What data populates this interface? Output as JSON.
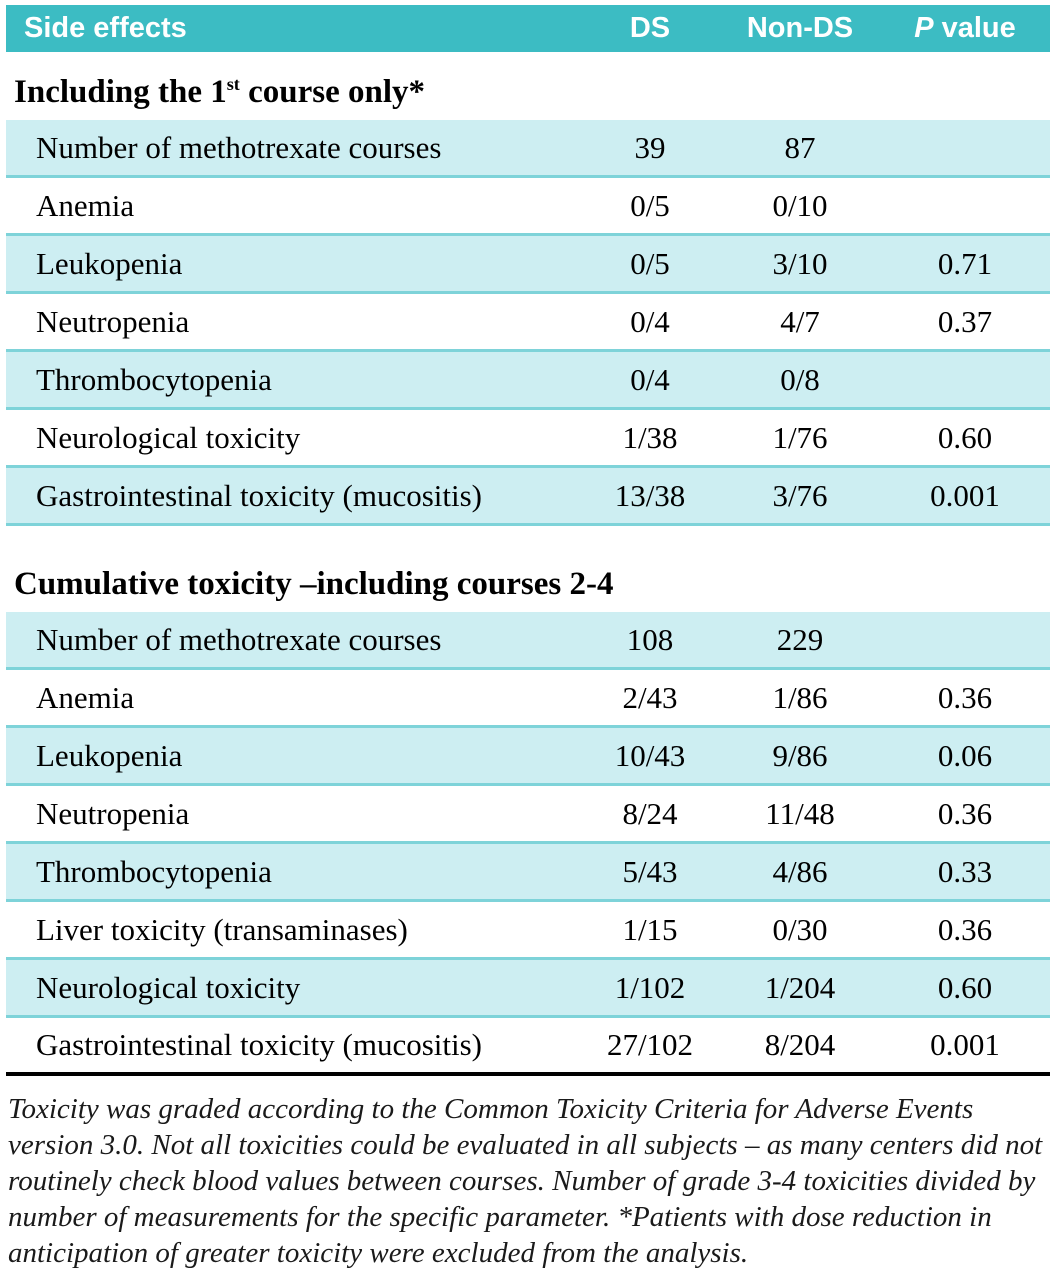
{
  "header": {
    "side_effects": "Side effects",
    "ds": "DS",
    "non_ds": "Non-DS",
    "p_italic": "P",
    "p_rest": " value"
  },
  "sections": [
    {
      "title_prefix": "Including the 1",
      "title_sup": "st",
      "title_suffix": " course only*",
      "rows": [
        {
          "label": "Number of methotrexate courses",
          "ds": "39",
          "non_ds": "87",
          "p": ""
        },
        {
          "label": "Anemia",
          "ds": "0/5",
          "non_ds": "0/10",
          "p": ""
        },
        {
          "label": "Leukopenia",
          "ds": "0/5",
          "non_ds": "3/10",
          "p": "0.71"
        },
        {
          "label": "Neutropenia",
          "ds": "0/4",
          "non_ds": "4/7",
          "p": "0.37"
        },
        {
          "label": "Thrombocytopenia",
          "ds": "0/4",
          "non_ds": "0/8",
          "p": ""
        },
        {
          "label": "Neurological toxicity",
          "ds": "1/38",
          "non_ds": "1/76",
          "p": "0.60"
        },
        {
          "label": "Gastrointestinal toxicity (mucositis)",
          "ds": "13/38",
          "non_ds": "3/76",
          "p": "0.001"
        }
      ]
    },
    {
      "title_prefix": "Cumulative toxicity –including courses 2-4",
      "title_sup": "",
      "title_suffix": "",
      "rows": [
        {
          "label": "Number of methotrexate courses",
          "ds": "108",
          "non_ds": "229",
          "p": ""
        },
        {
          "label": "Anemia",
          "ds": "2/43",
          "non_ds": "1/86",
          "p": "0.36"
        },
        {
          "label": "Leukopenia",
          "ds": "10/43",
          "non_ds": "9/86",
          "p": "0.06"
        },
        {
          "label": "Neutropenia",
          "ds": "8/24",
          "non_ds": "11/48",
          "p": "0.36"
        },
        {
          "label": "Thrombocytopenia",
          "ds": "5/43",
          "non_ds": "4/86",
          "p": "0.33"
        },
        {
          "label": "Liver toxicity (transaminases)",
          "ds": "1/15",
          "non_ds": "0/30",
          "p": "0.36"
        },
        {
          "label": "Neurological toxicity",
          "ds": "1/102",
          "non_ds": "1/204",
          "p": "0.60"
        },
        {
          "label": "Gastrointestinal toxicity (mucositis)",
          "ds": "27/102",
          "non_ds": "8/204",
          "p": "0.001"
        }
      ]
    }
  ],
  "footnote": "Toxicity was graded according to the Common Toxicity Criteria for Adverse Events version 3.0. Not all toxicities could be evaluated in all subjects – as many centers did not routinely check blood values between courses. Number of grade 3-4 toxicities divided by number of measurements for the specific parameter. *Patients with dose reduction in anticipation of greater toxicity were excluded from the analysis.",
  "colors": {
    "header_bg": "#3cbcc3",
    "row_band": "#cdeef2",
    "rule": "#7ed3d9",
    "text": "#000000"
  }
}
